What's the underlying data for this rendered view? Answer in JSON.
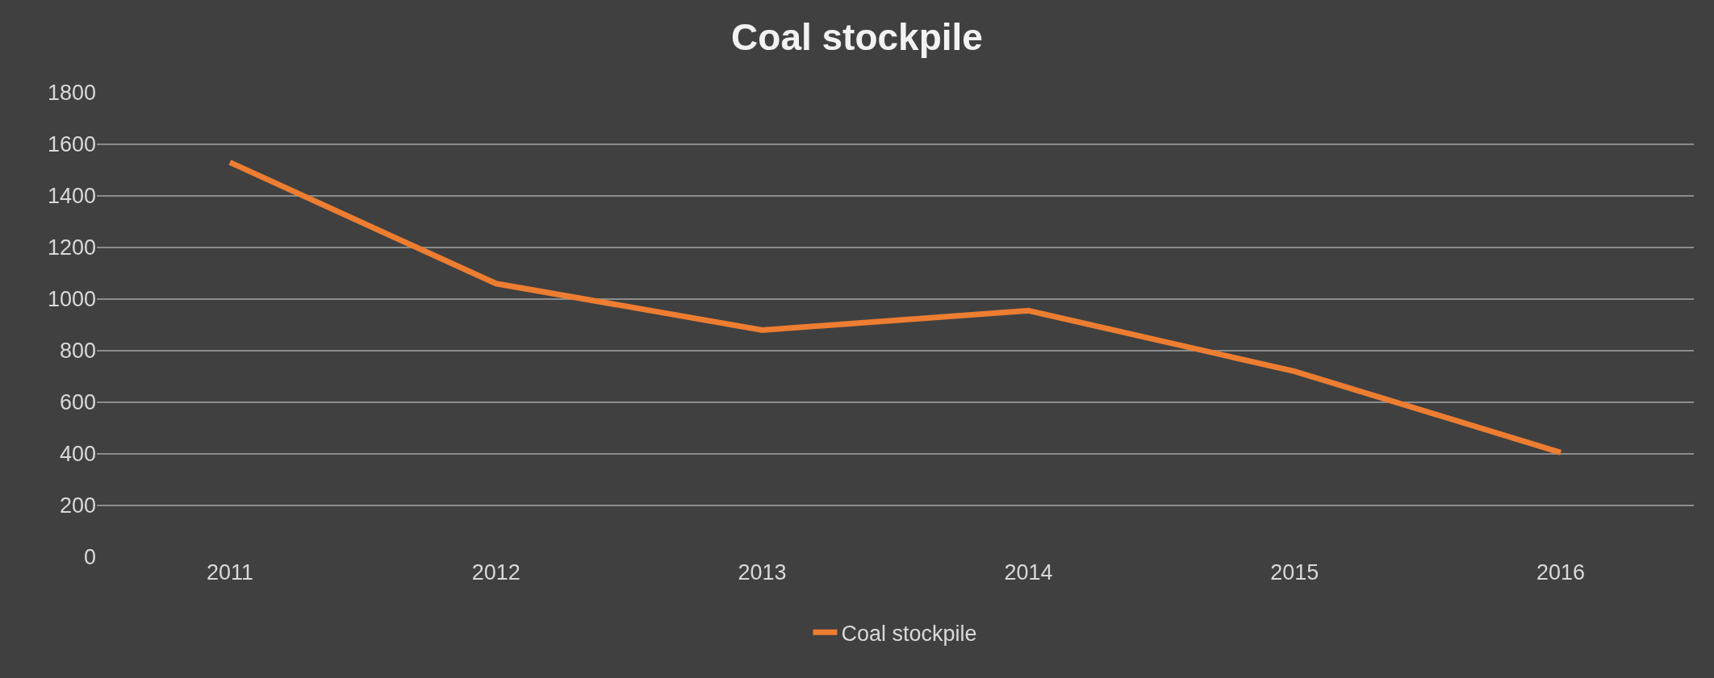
{
  "chart_data": {
    "type": "line",
    "title": "Coal stockpile",
    "categories": [
      "2011",
      "2012",
      "2013",
      "2014",
      "2015",
      "2016"
    ],
    "series": [
      {
        "name": "Coal stockpile",
        "color": "#ed7d31",
        "values": [
          1530,
          1060,
          880,
          955,
          720,
          405
        ]
      }
    ],
    "ylim": [
      0,
      1800
    ],
    "yticks": [
      0,
      200,
      400,
      600,
      800,
      1000,
      1200,
      1400,
      1600,
      1800
    ],
    "grid": "y",
    "legend": "bottom",
    "marker": "none",
    "line_style": "solid"
  }
}
